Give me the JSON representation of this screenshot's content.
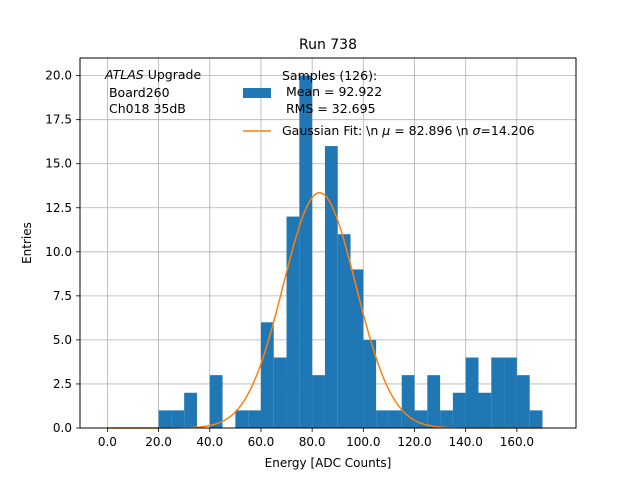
{
  "chart_data": {
    "type": "bar",
    "title": "Run 738",
    "xlabel": "Energy [ADC Counts]",
    "ylabel": "Entries",
    "xlim": [
      -10.7,
      183.1
    ],
    "ylim": [
      0,
      21
    ],
    "grid": true,
    "x_ticks": [
      0,
      20,
      40,
      60,
      80,
      100,
      120,
      140,
      160
    ],
    "x_tick_labels": [
      "0.0",
      "20.0",
      "40.0",
      "60.0",
      "80.0",
      "100.0",
      "120.0",
      "140.0",
      "160.0"
    ],
    "y_ticks": [
      0,
      2.5,
      5,
      7.5,
      10,
      12.5,
      15,
      17.5,
      20
    ],
    "y_tick_labels": [
      "0.0",
      "2.5",
      "5.0",
      "7.5",
      "10.0",
      "12.5",
      "15.0",
      "17.5",
      "20.0"
    ],
    "histogram": {
      "color": "#1f77b4",
      "bin_width": 5,
      "bin_edges_start": 0,
      "counts": [
        0,
        0,
        0,
        0,
        1,
        1,
        2,
        0,
        3,
        0,
        1,
        1,
        6,
        4,
        12,
        20,
        3,
        16,
        11,
        9,
        5,
        1,
        1,
        3,
        1,
        3,
        1,
        2,
        4,
        2,
        4,
        4,
        3,
        1
      ]
    },
    "fit": {
      "color": "#ff7f0e",
      "mu": 82.896,
      "sigma": 14.206,
      "amplitude": 13.35,
      "x_range": [
        0,
        170
      ]
    },
    "annotation": {
      "atlas_word": "ATLAS",
      "atlas_rest": " Upgrade",
      "line2": " Board260",
      "line3": " Ch018 35dB"
    },
    "legend": {
      "position": "top-right",
      "hist_label_lines": [
        "Samples (126):",
        " Mean = 92.922",
        " RMS = 32.695"
      ],
      "fit_label_prefix": "Gaussian Fit: \\n ",
      "fit_mu_symbol": "μ",
      "fit_mu_value": " = 82.896 \\n ",
      "fit_sigma_symbol": "σ",
      "fit_sigma_value": "=14.206"
    }
  }
}
